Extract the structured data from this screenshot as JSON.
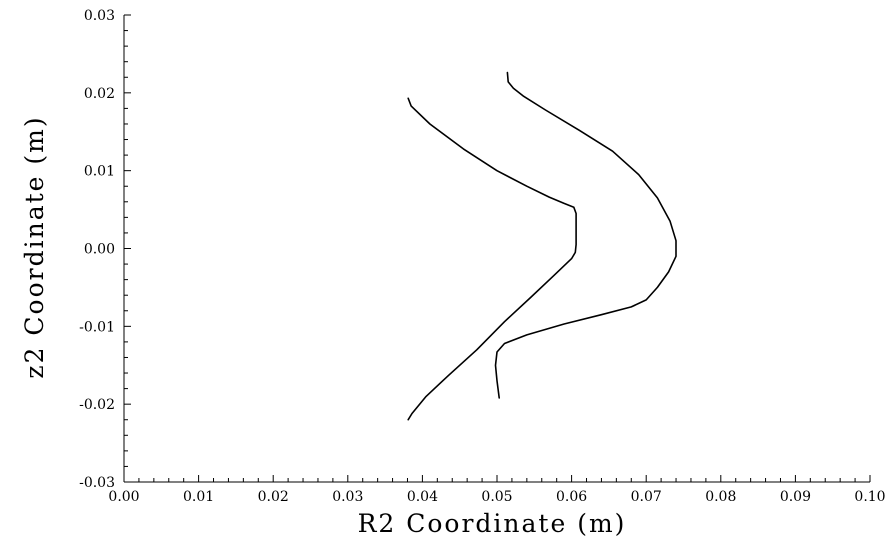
{
  "chart_data": {
    "type": "line",
    "title": "",
    "xlabel": "R2 Coordinate (m)",
    "ylabel": "z2 Coordinate (m)",
    "xlim": [
      0.0,
      0.1
    ],
    "ylim": [
      -0.03,
      0.03
    ],
    "xticks": [
      "0.00",
      "0.01",
      "0.02",
      "0.03",
      "0.04",
      "0.05",
      "0.06",
      "0.07",
      "0.08",
      "0.09",
      "0.10"
    ],
    "yticks": [
      "-0.03",
      "-0.02",
      "-0.01",
      "0.00",
      "0.01",
      "0.02",
      "0.03"
    ],
    "grid": false,
    "series": [
      {
        "x": [
          0.0381,
          0.0386,
          0.0405,
          0.0435,
          0.0473,
          0.051,
          0.0545,
          0.0576,
          0.06,
          0.0605,
          0.0606,
          0.0606,
          0.0603,
          0.059,
          0.057,
          0.054,
          0.05,
          0.0455,
          0.041,
          0.0385,
          0.0381
        ],
        "y": [
          -0.022,
          -0.0212,
          -0.019,
          -0.0163,
          -0.013,
          -0.0094,
          -0.0063,
          -0.0035,
          -0.0013,
          -0.0005,
          0.0005,
          0.0045,
          0.0053,
          0.0058,
          0.0066,
          0.008,
          0.01,
          0.0128,
          0.016,
          0.0183,
          0.0193
        ]
      },
      {
        "x": [
          0.0503,
          0.05,
          0.0498,
          0.05,
          0.051,
          0.054,
          0.059,
          0.064,
          0.068,
          0.07,
          0.0715,
          0.073,
          0.074,
          0.074,
          0.0732,
          0.0715,
          0.069,
          0.0655,
          0.061,
          0.0565,
          0.0535,
          0.0522,
          0.0515,
          0.0514
        ],
        "y": [
          -0.0192,
          -0.017,
          -0.015,
          -0.0133,
          -0.0122,
          -0.0111,
          -0.0097,
          -0.0085,
          -0.0075,
          -0.0066,
          -0.005,
          -0.003,
          -0.001,
          0.001,
          0.0035,
          0.0065,
          0.0095,
          0.0125,
          0.0152,
          0.0178,
          0.0196,
          0.0206,
          0.0214,
          0.0226
        ]
      }
    ]
  }
}
